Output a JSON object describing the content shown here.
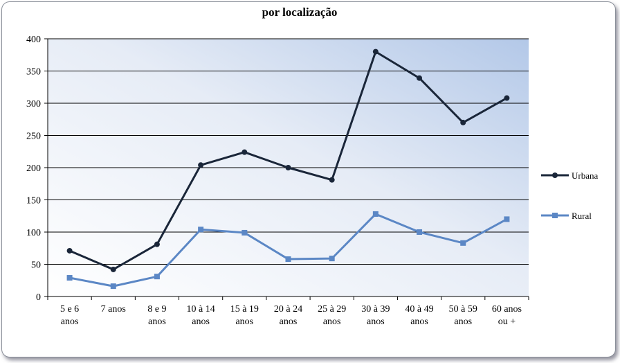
{
  "chart_data": {
    "type": "line",
    "title": "por  localização",
    "xlabel": "",
    "ylabel": "",
    "categories": [
      [
        "5 e 6",
        "anos"
      ],
      [
        "7 anos"
      ],
      [
        "8 e 9",
        "anos"
      ],
      [
        "10 à 14",
        "anos"
      ],
      [
        "15 à 19",
        "anos"
      ],
      [
        "20 à 24",
        "anos"
      ],
      [
        "25 à 29",
        "anos"
      ],
      [
        "30 à 39",
        "anos"
      ],
      [
        "40 à 49",
        "anos"
      ],
      [
        "50 à 59",
        "anos"
      ],
      [
        "60 anos",
        "ou +"
      ]
    ],
    "ylim": [
      0,
      400
    ],
    "yticks": [
      0,
      50,
      100,
      150,
      200,
      250,
      300,
      350,
      400
    ],
    "grid": true,
    "legend_position": "right",
    "series": [
      {
        "name": "Urbana",
        "color": "#1a2639",
        "marker": "circle",
        "values": [
          71,
          42,
          81,
          204,
          224,
          200,
          181,
          380,
          339,
          270,
          308
        ]
      },
      {
        "name": "Rural",
        "color": "#5b87c5",
        "marker": "square",
        "values": [
          29,
          16,
          31,
          104,
          99,
          58,
          59,
          128,
          100,
          83,
          120
        ]
      }
    ]
  }
}
